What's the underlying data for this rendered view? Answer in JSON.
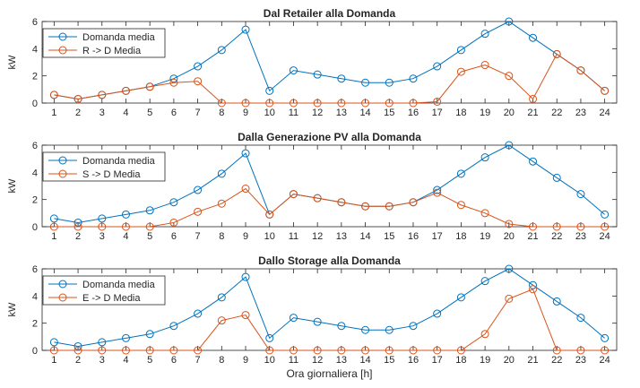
{
  "figure": {
    "xlabel": "Ora giornaliera [h]"
  },
  "colors": {
    "demand": "#0072BD",
    "source": "#D95319",
    "axis": "#262626",
    "background": "#ffffff"
  },
  "chart_data": [
    {
      "type": "line",
      "title": "Dal Retailer alla Domanda",
      "ylabel": "kW",
      "xlabel": "",
      "ylim": [
        0,
        6
      ],
      "yticks": [
        0,
        2,
        4,
        6
      ],
      "x": [
        1,
        2,
        3,
        4,
        5,
        6,
        7,
        8,
        9,
        10,
        11,
        12,
        13,
        14,
        15,
        16,
        17,
        18,
        19,
        20,
        21,
        22,
        23,
        24
      ],
      "legend_position": "top-left",
      "marker": "circle",
      "series": [
        {
          "name": "Domanda media",
          "color": "#0072BD",
          "values": [
            0.6,
            0.3,
            0.6,
            0.9,
            1.2,
            1.8,
            2.7,
            3.9,
            5.4,
            0.9,
            2.4,
            2.1,
            1.8,
            1.5,
            1.5,
            1.8,
            2.7,
            3.9,
            5.1,
            6.0,
            4.8,
            3.6,
            2.4,
            0.9
          ]
        },
        {
          "name": "R -> D Media",
          "color": "#D95319",
          "values": [
            0.6,
            0.3,
            0.6,
            0.9,
            1.2,
            1.5,
            1.6,
            0,
            0,
            0,
            0,
            0,
            0,
            0,
            0,
            0,
            0.1,
            2.3,
            2.8,
            2.0,
            0.3,
            3.6,
            2.4,
            0.9
          ]
        }
      ]
    },
    {
      "type": "line",
      "title": "Dalla Generazione PV alla Domanda",
      "ylabel": "kW",
      "xlabel": "",
      "ylim": [
        0,
        6
      ],
      "yticks": [
        0,
        2,
        4,
        6
      ],
      "x": [
        1,
        2,
        3,
        4,
        5,
        6,
        7,
        8,
        9,
        10,
        11,
        12,
        13,
        14,
        15,
        16,
        17,
        18,
        19,
        20,
        21,
        22,
        23,
        24
      ],
      "legend_position": "top-left",
      "marker": "circle",
      "series": [
        {
          "name": "Domanda media",
          "color": "#0072BD",
          "values": [
            0.6,
            0.3,
            0.6,
            0.9,
            1.2,
            1.8,
            2.7,
            3.9,
            5.4,
            0.9,
            2.4,
            2.1,
            1.8,
            1.5,
            1.5,
            1.8,
            2.7,
            3.9,
            5.1,
            6.0,
            4.8,
            3.6,
            2.4,
            0.9
          ]
        },
        {
          "name": "S -> D Media",
          "color": "#D95319",
          "values": [
            0,
            0,
            0,
            0,
            0,
            0.3,
            1.1,
            1.7,
            2.8,
            0.9,
            2.4,
            2.1,
            1.8,
            1.5,
            1.5,
            1.8,
            2.5,
            1.6,
            1.0,
            0.2,
            0,
            0,
            0,
            0
          ]
        }
      ]
    },
    {
      "type": "line",
      "title": "Dallo Storage alla Domanda",
      "ylabel": "kW",
      "xlabel": "Ora giornaliera [h]",
      "ylim": [
        0,
        6
      ],
      "yticks": [
        0,
        2,
        4,
        6
      ],
      "x": [
        1,
        2,
        3,
        4,
        5,
        6,
        7,
        8,
        9,
        10,
        11,
        12,
        13,
        14,
        15,
        16,
        17,
        18,
        19,
        20,
        21,
        22,
        23,
        24
      ],
      "legend_position": "top-left",
      "marker": "circle",
      "series": [
        {
          "name": "Domanda media",
          "color": "#0072BD",
          "values": [
            0.6,
            0.3,
            0.6,
            0.9,
            1.2,
            1.8,
            2.7,
            3.9,
            5.4,
            0.9,
            2.4,
            2.1,
            1.8,
            1.5,
            1.5,
            1.8,
            2.7,
            3.9,
            5.1,
            6.0,
            4.8,
            3.6,
            2.4,
            0.9
          ]
        },
        {
          "name": "E -> D Media",
          "color": "#D95319",
          "values": [
            0,
            0,
            0,
            0,
            0,
            0,
            0,
            2.2,
            2.6,
            0,
            0,
            0,
            0,
            0,
            0,
            0,
            0,
            0,
            1.2,
            3.8,
            4.5,
            0,
            0,
            0
          ]
        }
      ]
    }
  ]
}
